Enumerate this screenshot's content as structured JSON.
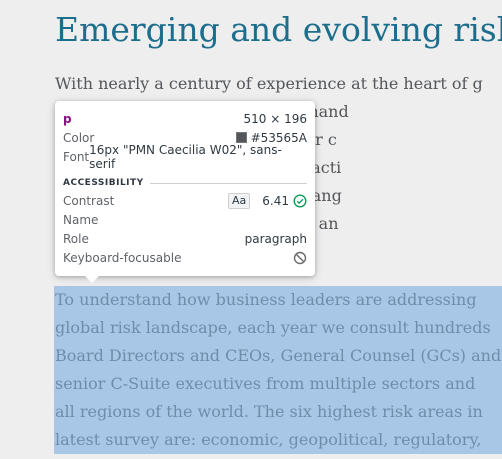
{
  "article": {
    "heading": "Emerging and evolving risk",
    "paragraph1": {
      "lines": [
        "With nearly a century of experience at the heart of g",
        "                    hanaging risk and hand",
        "                    aunch pursuit of our c",
        "                    s of disputes, transacti",
        "                    h issue from every ang",
        "                    igating commercial an"
      ]
    },
    "paragraph2": {
      "lines": [
        "To understand how business leaders are addressing",
        "global risk landscape, each year we consult hundreds",
        "Board Directors and CEOs, General Counsel (GCs) and",
        "senior C-Suite executives from multiple sectors and",
        "all regions of the world. The six highest risk areas in",
        "latest survey are: economic, geopolitical, regulatory,"
      ]
    }
  },
  "inspector_tooltip": {
    "tag": "p",
    "dimensions": "510 × 196",
    "color_label": "Color",
    "color_value": "#53565A",
    "color_swatch": "#53565A",
    "font_label": "Font",
    "font_value": "16px \"PMN Caecilia W02\", sans-serif",
    "accessibility_heading": "ACCESSIBILITY",
    "contrast_label": "Contrast",
    "contrast_badge": "Aa",
    "contrast_value": "6.41",
    "name_label": "Name",
    "name_value": "",
    "role_label": "Role",
    "role_value": "paragraph",
    "keyboard_label": "Keyboard-focusable",
    "icons": {
      "contrast_pass": "check-circle-icon",
      "keyboard_not_focusable": "no-entry-icon"
    },
    "colors": {
      "pass_green": "#0f9d58",
      "tag_purple": "#881280"
    }
  },
  "colors": {
    "heading": "#1c6e8c",
    "body_text": "#53565a",
    "selection_bg": "#a8c6e6"
  }
}
